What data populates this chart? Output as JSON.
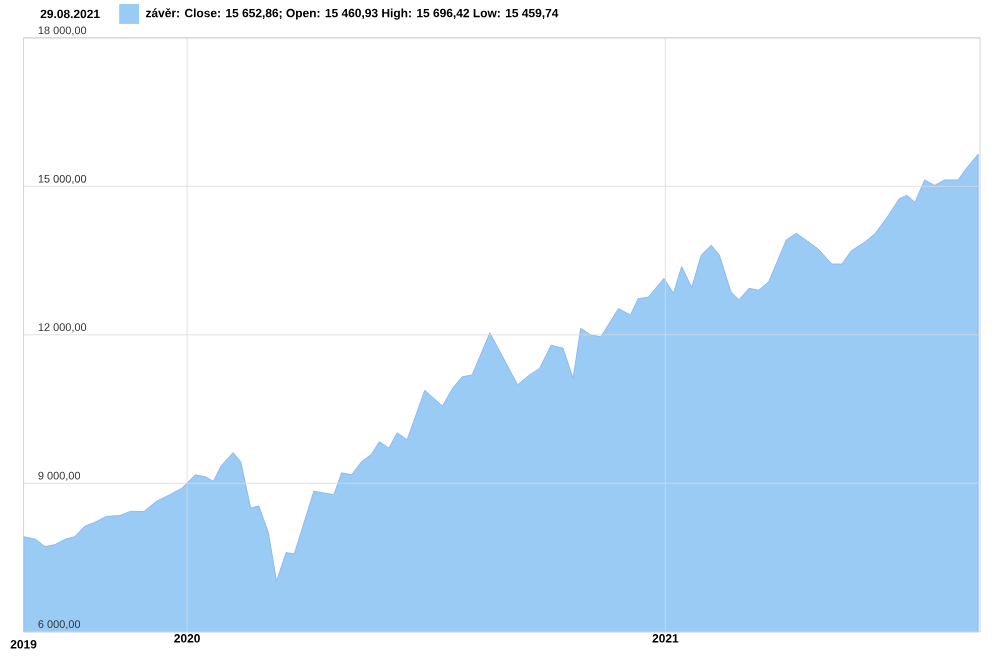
{
  "chart_data": {
    "type": "area",
    "title": "29.08.2021",
    "legend": "top left",
    "grid": true,
    "xlim": [
      2019.658,
      2021.658
    ],
    "xticks": [
      2020,
      2021
    ],
    "annotations": [
      "2019"
    ],
    "ylim": [
      6000,
      18000
    ],
    "yticks": [
      {
        "value": 6000,
        "label": "6 000,00"
      },
      {
        "value": 9000,
        "label": "9 000,00"
      },
      {
        "value": 12000,
        "label": "12 000,00"
      },
      {
        "value": 15000,
        "label": "15 000,00"
      },
      {
        "value": 18000,
        "label": "18 000,00"
      }
    ],
    "series": [
      {
        "name": "závěr: Close: 15 652,86; Open: 15 460,93 High: 15 696,42 Low: 15 459,74",
        "color": "#99cbf5",
        "x": [
          2019.658,
          2019.683,
          2019.703,
          2019.724,
          2019.745,
          2019.765,
          2019.786,
          2019.807,
          2019.831,
          2019.86,
          2019.881,
          2019.91,
          2019.935,
          2019.964,
          2019.989,
          2020.017,
          2020.038,
          2020.055,
          2020.071,
          2020.096,
          2020.112,
          2020.133,
          2020.15,
          2020.17,
          2020.187,
          2020.207,
          2020.224,
          2020.265,
          2020.307,
          2020.323,
          2020.344,
          2020.365,
          2020.385,
          2020.402,
          2020.422,
          2020.439,
          2020.46,
          2020.497,
          2020.534,
          2020.555,
          2020.575,
          2020.596,
          2020.633,
          2020.691,
          2020.716,
          2020.737,
          2020.761,
          2020.786,
          2020.807,
          2020.823,
          2020.844,
          2020.865,
          2020.902,
          2020.927,
          2020.943,
          2020.964,
          2020.997,
          2021.017,
          2021.034,
          2021.055,
          2021.075,
          2021.096,
          2021.113,
          2021.137,
          2021.154,
          2021.175,
          2021.195,
          2021.216,
          2021.253,
          2021.274,
          2021.319,
          2021.348,
          2021.369,
          2021.389,
          2021.418,
          2021.439,
          2021.464,
          2021.489,
          2021.505,
          2021.522,
          2021.542,
          2021.563,
          2021.584,
          2021.612,
          2021.629,
          2021.654
        ],
        "values": [
          7920,
          7870,
          7720,
          7760,
          7870,
          7920,
          8130,
          8210,
          8330,
          8350,
          8430,
          8430,
          8630,
          8770,
          8900,
          9170,
          9130,
          9040,
          9350,
          9620,
          9440,
          8500,
          8540,
          8000,
          7020,
          7600,
          7570,
          8840,
          8770,
          9210,
          9170,
          9440,
          9580,
          9840,
          9710,
          10020,
          9880,
          10880,
          10560,
          10920,
          11150,
          11190,
          12040,
          10990,
          11190,
          11320,
          11790,
          11730,
          11120,
          12130,
          12000,
          11960,
          12530,
          12400,
          12730,
          12760,
          13140,
          12840,
          13380,
          12960,
          13610,
          13810,
          13610,
          12870,
          12710,
          12940,
          12900,
          13070,
          13920,
          14050,
          13740,
          13430,
          13430,
          13700,
          13880,
          14050,
          14380,
          14750,
          14820,
          14680,
          15130,
          15020,
          15130,
          15130,
          15360,
          15650
        ]
      }
    ]
  }
}
